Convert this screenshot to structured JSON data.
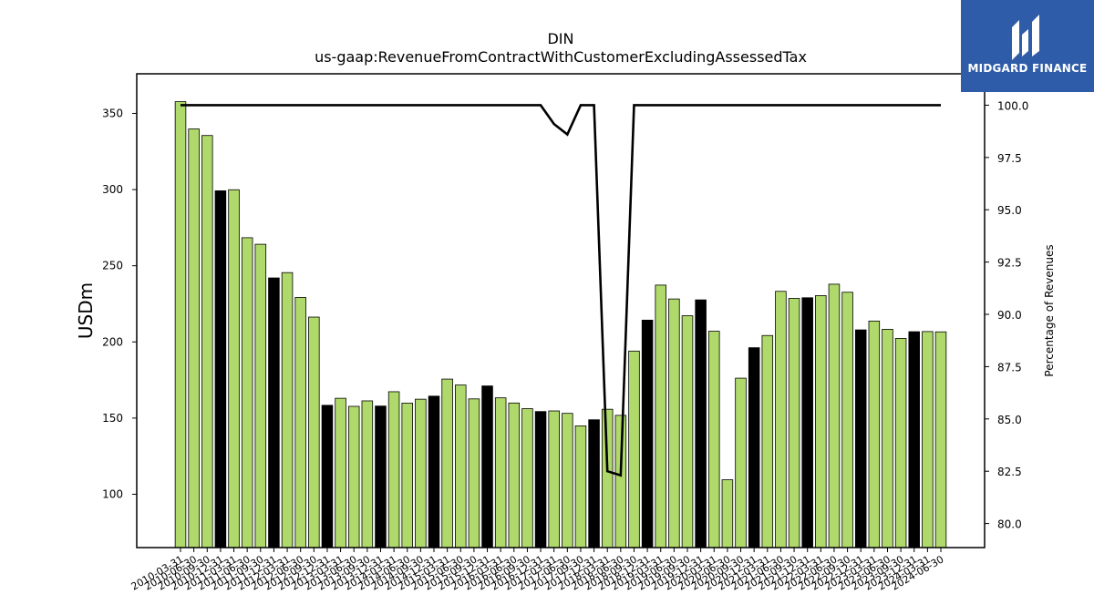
{
  "colors": {
    "bar_default": "#b0d96b",
    "bar_highlight": "#000000",
    "line": "#000000",
    "logo_bg": "#2f5ca8",
    "logo_fg": "#ffffff"
  },
  "logo": {
    "icon": "midgard-finance-logo-icon",
    "text": "MIDGARD FINANCE"
  },
  "chart_data": {
    "type": "bar",
    "title": "DIN",
    "subtitle": "us-gaap:RevenueFromContractWithCustomerExcludingAssessedTax",
    "ylabel": "USDm",
    "y2label": "Percentage of Revenues",
    "ylim": [
      65,
      376
    ],
    "y2lim": [
      78.85,
      101.5
    ],
    "yticks": [
      100,
      150,
      200,
      250,
      300,
      350
    ],
    "y2ticks": [
      "80.0",
      "82.5",
      "85.0",
      "87.5",
      "90.0",
      "92.5",
      "95.0",
      "97.5",
      "100.0"
    ],
    "categories": [
      "2010-03-31",
      "2010-06-30",
      "2010-09-30",
      "2010-12-31",
      "2011-03-31",
      "2011-06-30",
      "2011-09-30",
      "2011-12-31",
      "2012-03-31",
      "2012-06-30",
      "2012-09-30",
      "2012-12-31",
      "2013-03-31",
      "2013-06-30",
      "2013-09-30",
      "2013-12-31",
      "2014-03-31",
      "2014-06-30",
      "2014-09-30",
      "2014-12-31",
      "2015-03-31",
      "2015-06-30",
      "2015-09-30",
      "2015-12-31",
      "2016-03-31",
      "2016-06-30",
      "2016-09-30",
      "2016-12-31",
      "2017-03-31",
      "2017-06-30",
      "2017-09-30",
      "2017-12-31",
      "2018-03-31",
      "2018-06-30",
      "2018-09-30",
      "2018-12-31",
      "2019-03-31",
      "2019-06-30",
      "2019-09-30",
      "2019-12-31",
      "2020-03-31",
      "2020-06-30",
      "2020-09-30",
      "2020-12-31",
      "2021-03-31",
      "2021-06-30",
      "2021-09-30",
      "2021-12-31",
      "2022-03-31",
      "2022-06-30",
      "2022-09-30",
      "2022-12-31",
      "2023-03-31",
      "2023-06-30",
      "2023-09-30",
      "2023-12-31",
      "2024-03-31",
      "2024-06-30"
    ],
    "highlight_indices": [
      3,
      7,
      11,
      15,
      19,
      23,
      27,
      31,
      35,
      39,
      43,
      47,
      51,
      55
    ],
    "series": [
      {
        "type": "bar",
        "values": [
          357.7,
          339.8,
          335.5,
          299.2,
          299.9,
          268.4,
          264.1,
          242.0,
          245.5,
          229.2,
          216.3,
          158.4,
          163.0,
          157.7,
          161.3,
          157.9,
          167.3,
          159.8,
          162.4,
          164.4,
          175.6,
          171.7,
          162.6,
          171.1,
          163.3,
          159.9,
          156.2,
          154.3,
          154.7,
          153.1,
          144.9,
          148.9,
          155.8,
          151.8,
          194.0,
          214.3,
          237.3,
          228.2,
          217.2,
          227.6,
          207.0,
          109.5,
          176.2,
          196.2,
          204.2,
          233.2,
          228.6,
          229.0,
          230.4,
          237.9,
          232.6,
          207.9,
          213.7,
          208.3,
          202.3,
          206.7,
          206.8,
          206.6
        ]
      },
      {
        "type": "line",
        "axis": "right",
        "values": [
          100,
          100,
          100,
          100,
          100,
          100,
          100,
          100,
          100,
          100,
          100,
          100,
          100,
          100,
          100,
          100,
          100,
          100,
          100,
          100,
          100,
          100,
          100,
          100,
          100,
          100,
          100,
          100,
          99.1,
          98.6,
          100,
          100,
          82.5,
          82.3,
          100,
          100,
          100,
          100,
          100,
          100,
          100,
          100,
          100,
          100,
          100,
          100,
          100,
          100,
          100,
          100,
          100,
          100,
          100,
          100,
          100,
          100,
          100,
          100
        ]
      }
    ]
  }
}
